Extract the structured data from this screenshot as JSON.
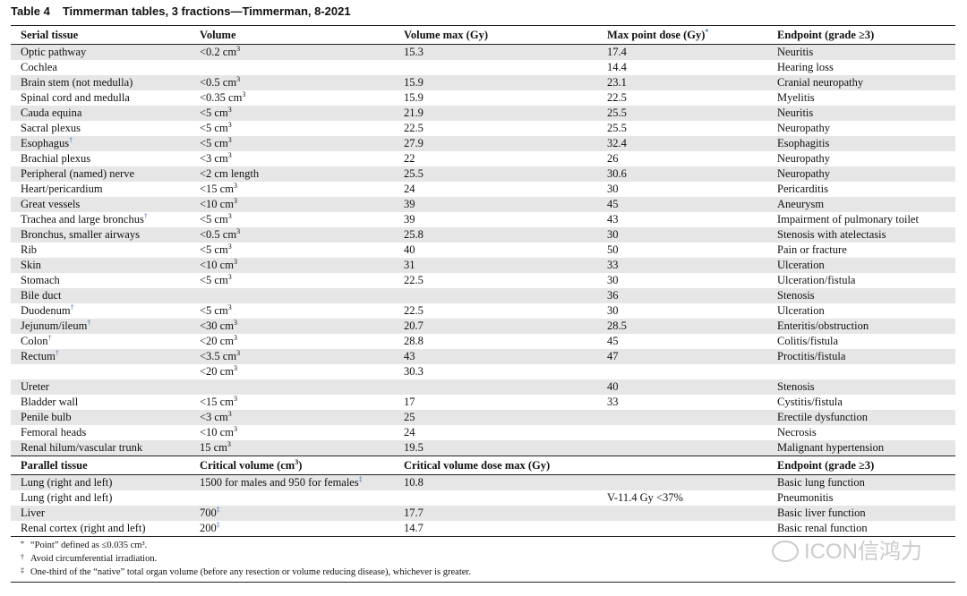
{
  "caption": {
    "label": "Table 4",
    "title": "Timmerman tables, 3 fractions—Timmerman, 8-2021"
  },
  "serial_header": {
    "tissue": "Serial tissue",
    "volume": "Volume",
    "volume_max": "Volume max (Gy)",
    "max_point": "Max point dose (Gy)",
    "max_point_mark": "*",
    "endpoint": "Endpoint (grade ≥3)"
  },
  "serial_rows": [
    {
      "tissue": "Optic pathway",
      "volume": "<0.2 cm",
      "vsup": "3",
      "vmax": "15.3",
      "point": "17.4",
      "endpoint": "Neuritis"
    },
    {
      "tissue": "Cochlea",
      "volume": "",
      "vmax": "",
      "point": "14.4",
      "endpoint": "Hearing loss"
    },
    {
      "tissue": "Brain stem (not medulla)",
      "volume": "<0.5 cm",
      "vsup": "3",
      "vmax": "15.9",
      "point": "23.1",
      "endpoint": "Cranial neuropathy"
    },
    {
      "tissue": "Spinal cord and medulla",
      "volume": "<0.35 cm",
      "vsup": "3",
      "vmax": "15.9",
      "point": "22.5",
      "endpoint": "Myelitis"
    },
    {
      "tissue": "Cauda equina",
      "volume": "<5 cm",
      "vsup": "3",
      "vmax": "21.9",
      "point": "25.5",
      "endpoint": "Neuritis"
    },
    {
      "tissue": "Sacral plexus",
      "volume": "<5 cm",
      "vsup": "3",
      "vmax": "22.5",
      "point": "25.5",
      "endpoint": "Neuropathy"
    },
    {
      "tissue": "Esophagus",
      "tsup": "†",
      "volume": "<5 cm",
      "vsup": "3",
      "vmax": "27.9",
      "point": "32.4",
      "endpoint": "Esophagitis"
    },
    {
      "tissue": "Brachial plexus",
      "volume": "<3 cm",
      "vsup": "3",
      "vmax": "22",
      "point": "26",
      "endpoint": "Neuropathy"
    },
    {
      "tissue": "Peripheral (named) nerve",
      "volume": "<2 cm length",
      "vmax": "25.5",
      "point": "30.6",
      "endpoint": "Neuropathy"
    },
    {
      "tissue": "Heart/pericardium",
      "volume": "<15 cm",
      "vsup": "3",
      "vmax": "24",
      "point": "30",
      "endpoint": "Pericarditis"
    },
    {
      "tissue": "Great vessels",
      "volume": "<10 cm",
      "vsup": "3",
      "vmax": "39",
      "point": "45",
      "endpoint": "Aneurysm"
    },
    {
      "tissue": "Trachea and large bronchus",
      "tsup": "†",
      "volume": "<5 cm",
      "vsup": "3",
      "vmax": "39",
      "point": "43",
      "endpoint": "Impairment of pulmonary toilet"
    },
    {
      "tissue": "Bronchus, smaller airways",
      "volume": "<0.5 cm",
      "vsup": "3",
      "vmax": "25.8",
      "point": "30",
      "endpoint": "Stenosis with atelectasis"
    },
    {
      "tissue": "Rib",
      "volume": "<5 cm",
      "vsup": "3",
      "vmax": "40",
      "point": "50",
      "endpoint": "Pain or fracture"
    },
    {
      "tissue": "Skin",
      "volume": "<10 cm",
      "vsup": "3",
      "vmax": "31",
      "point": "33",
      "endpoint": "Ulceration"
    },
    {
      "tissue": "Stomach",
      "volume": "<5 cm",
      "vsup": "3",
      "vmax": "22.5",
      "point": "30",
      "endpoint": "Ulceration/fistula"
    },
    {
      "tissue": "Bile duct",
      "volume": "",
      "vmax": "",
      "point": "36",
      "endpoint": "Stenosis"
    },
    {
      "tissue": "Duodenum",
      "tsup": "†",
      "volume": "<5 cm",
      "vsup": "3",
      "vmax": "22.5",
      "point": "30",
      "endpoint": "Ulceration"
    },
    {
      "tissue": "Jejunum/ileum",
      "tsup": "†",
      "volume": "<30 cm",
      "vsup": "3",
      "vmax": "20.7",
      "point": "28.5",
      "endpoint": "Enteritis/obstruction"
    },
    {
      "tissue": "Colon",
      "tsup": "†",
      "volume": "<20 cm",
      "vsup": "3",
      "vmax": "28.8",
      "point": "45",
      "endpoint": "Colitis/fistula"
    },
    {
      "tissue": "Rectum",
      "tsup": "†",
      "volume": "<3.5 cm",
      "vsup": "3",
      "vmax": "43",
      "point": "47",
      "endpoint": "Proctitis/fistula"
    },
    {
      "tissue": "",
      "volume": "<20 cm",
      "vsup": "3",
      "vmax": "30.3",
      "point": "",
      "endpoint": ""
    },
    {
      "tissue": "Ureter",
      "volume": "",
      "vmax": "",
      "point": "40",
      "endpoint": "Stenosis"
    },
    {
      "tissue": "Bladder wall",
      "volume": "<15 cm",
      "vsup": "3",
      "vmax": "17",
      "point": "33",
      "endpoint": "Cystitis/fistula"
    },
    {
      "tissue": "Penile bulb",
      "volume": "<3 cm",
      "vsup": "3",
      "vmax": "25",
      "point": "",
      "endpoint": "Erectile dysfunction"
    },
    {
      "tissue": "Femoral heads",
      "volume": "<10 cm",
      "vsup": "3",
      "vmax": "24",
      "point": "",
      "endpoint": "Necrosis"
    },
    {
      "tissue": "Renal hilum/vascular trunk",
      "volume": "15 cm",
      "vsup": "3",
      "vmax": "19.5",
      "point": "",
      "endpoint": "Malignant hypertension"
    }
  ],
  "parallel_header": {
    "tissue": "Parallel tissue",
    "volume": "Critical volume (cm",
    "volume_sup": "3",
    "volume_tail": ")",
    "dose": "Critical volume dose max (Gy)",
    "endpoint": "Endpoint (grade ≥3)"
  },
  "parallel_rows": [
    {
      "tissue": "Lung (right and left)",
      "volume": "1500 for males and 950 for females",
      "vsup": "‡",
      "dose": "10.8",
      "point": "",
      "endpoint": "Basic lung function"
    },
    {
      "tissue": "Lung (right and left)",
      "volume": "",
      "dose": "",
      "point": "V-11.4 Gy <37%",
      "endpoint": "Pneumonitis"
    },
    {
      "tissue": "Liver",
      "volume": "700",
      "vsup": "‡",
      "dose": "17.7",
      "point": "",
      "endpoint": "Basic liver function"
    },
    {
      "tissue": "Renal cortex (right and left)",
      "volume": "200",
      "vsup": "‡",
      "dose": "14.7",
      "point": "",
      "endpoint": "Basic renal function"
    }
  ],
  "footnotes": [
    {
      "symbol": "*",
      "text": "“Point” defined as ≤0.035 cm³."
    },
    {
      "symbol": "†",
      "text": "Avoid circumferential irradiation."
    },
    {
      "symbol": "‡",
      "text": "One-third of the “native” total organ volume (before any resection or volume reducing disease), whichever is greater."
    }
  ],
  "watermark": "ICON信鸿力"
}
